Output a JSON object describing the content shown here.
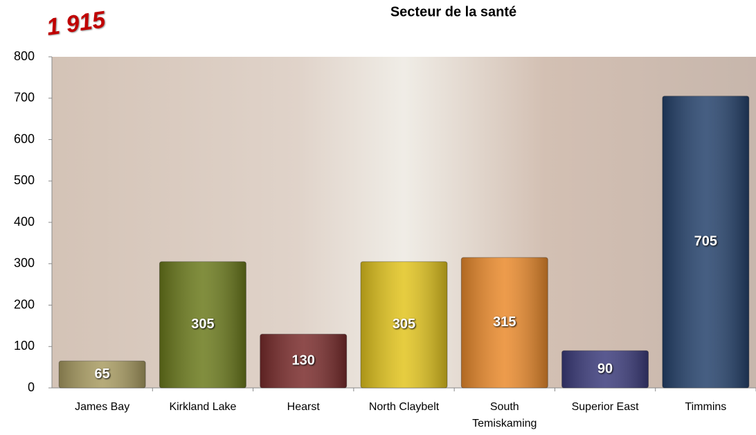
{
  "chart_data": {
    "type": "bar",
    "title": "Secteur de la santé",
    "annotation": "1 915",
    "categories": [
      "James Bay",
      "Kirkland Lake",
      "Hearst",
      "North Claybelt",
      "South Temiskaming",
      "Superior East",
      "Timmins"
    ],
    "values": [
      65,
      305,
      130,
      305,
      315,
      90,
      705
    ],
    "colors": [
      "#a99c62",
      "#6b7a1c",
      "#7a2c2c",
      "#e2c41e",
      "#ea8a2c",
      "#3c3c7c",
      "#25426c"
    ],
    "ylim": [
      0,
      800
    ],
    "yticks": [
      0,
      100,
      200,
      300,
      400,
      500,
      600,
      700,
      800
    ],
    "grid": false
  }
}
